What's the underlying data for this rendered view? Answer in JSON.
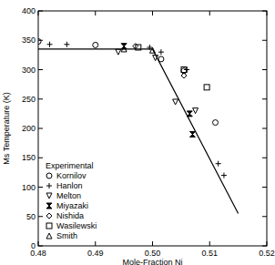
{
  "chart_data": {
    "type": "scatter",
    "x_label": "Mole-Fraction Ni",
    "y_label": "Ms Temperature (K)",
    "legend_title": "Experimental",
    "legend": "lower left",
    "xlim": [
      0.48,
      0.52
    ],
    "ylim": [
      0,
      400
    ],
    "xticks": [
      0.48,
      0.49,
      {
        "value": 0.5,
        "label": "0.50"
      },
      0.51,
      0.52
    ],
    "yticks": [
      0,
      50,
      100,
      150,
      200,
      250,
      300,
      350,
      400
    ],
    "grid": false,
    "series": [
      {
        "name": "Kornilov",
        "color": "#000000",
        "marker": "circle",
        "x": [
          0.48,
          0.49,
          0.5015,
          0.5055,
          0.511
        ],
        "values": [
          348,
          342,
          318,
          298,
          210
        ]
      },
      {
        "name": "Hanlon",
        "color": "#000000",
        "marker": "plus",
        "x": [
          0.482,
          0.485,
          0.4995,
          0.5015,
          0.506,
          0.5115,
          0.5125
        ],
        "values": [
          343,
          343,
          338,
          330,
          300,
          140,
          120
        ]
      },
      {
        "name": "Melton",
        "color": "#000000",
        "marker": "triangle-down",
        "x": [
          0.494,
          0.5005,
          0.504,
          0.5075
        ],
        "values": [
          330,
          320,
          245,
          230
        ]
      },
      {
        "name": "Miyazaki",
        "color": "#000000",
        "marker": "hourglass",
        "x": [
          0.495,
          0.5065,
          0.507
        ],
        "values": [
          340,
          225,
          190
        ]
      },
      {
        "name": "Nishida",
        "color": "#000000",
        "marker": "diamond",
        "x": [
          0.497,
          0.5055
        ],
        "values": [
          340,
          290
        ]
      },
      {
        "name": "Wasilewski",
        "color": "#000000",
        "marker": "square",
        "x": [
          0.4975,
          0.5055,
          0.5095
        ],
        "values": [
          338,
          300,
          270
        ]
      },
      {
        "name": "Smith",
        "color": "#000000",
        "marker": "triangle-up",
        "x": [
          0.495,
          0.5
        ],
        "values": [
          335,
          333
        ]
      },
      {
        "type": "line",
        "color": "#000000",
        "line_style": "solid",
        "x": [
          0.48,
          0.5,
          0.515
        ],
        "values": [
          335,
          335,
          55
        ]
      }
    ]
  }
}
